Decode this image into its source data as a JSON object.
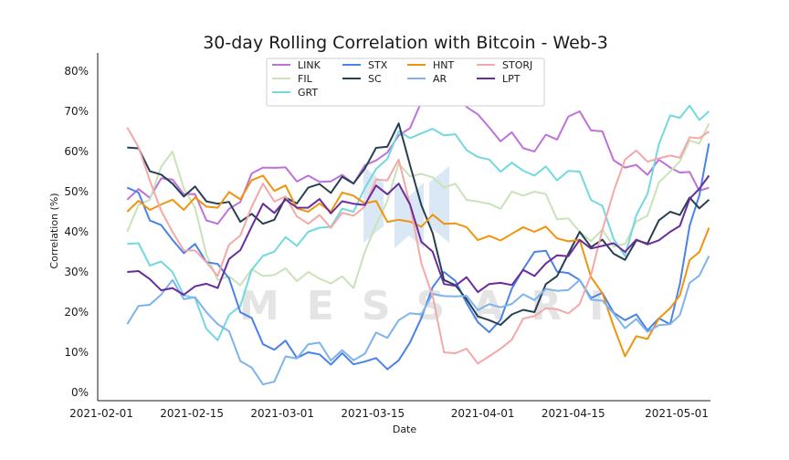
{
  "chart_data": {
    "type": "line",
    "title": "30-day Rolling Correlation with Bitcoin - Web-3",
    "xlabel": "Date",
    "ylabel": "Correlation (%)",
    "watermark": "MESSARI",
    "x_ticks": [
      "2021-02-01",
      "2021-02-15",
      "2021-03-01",
      "2021-03-15",
      "2021-04-01",
      "2021-04-15",
      "2021-05-01"
    ],
    "y_ticks": [
      "0%",
      "10%",
      "20%",
      "30%",
      "40%",
      "50%",
      "60%",
      "70%",
      "80%"
    ],
    "ylim": [
      0,
      80
    ],
    "x_range": [
      "2021-02-05",
      "2021-05-06"
    ],
    "legend_position": "top-center",
    "x": [
      "2021-02-05",
      "2021-02-12",
      "2021-02-19",
      "2021-02-26",
      "2021-03-05",
      "2021-03-12",
      "2021-03-19",
      "2021-03-26",
      "2021-04-02",
      "2021-04-09",
      "2021-04-16",
      "2021-04-23",
      "2021-04-30",
      "2021-05-06"
    ],
    "series": [
      {
        "name": "LINK",
        "color": "#c071d8",
        "values": [
          48,
          53,
          42,
          56,
          54,
          52,
          64,
          79,
          66,
          60,
          70,
          56,
          56,
          51
        ]
      },
      {
        "name": "FIL",
        "color": "#c9e2b8",
        "values": [
          40,
          60,
          28,
          29,
          30,
          26,
          57,
          51,
          47,
          50,
          40,
          37,
          55,
          67
        ]
      },
      {
        "name": "GRT",
        "color": "#73d8e0",
        "values": [
          37,
          30,
          13,
          34,
          40,
          45,
          65,
          64,
          58,
          54,
          55,
          34,
          69,
          70
        ]
      },
      {
        "name": "STX",
        "color": "#4a82e8",
        "values": [
          51,
          38,
          32,
          12,
          10,
          7,
          8,
          30,
          15,
          35,
          28,
          18,
          17,
          62
        ]
      },
      {
        "name": "SC",
        "color": "#273f52",
        "values": [
          61,
          52,
          47,
          42,
          51,
          52,
          67,
          28,
          18,
          20,
          40,
          33,
          45,
          48
        ]
      },
      {
        "name": "HNT",
        "color": "#f0940d",
        "values": [
          45,
          48,
          46,
          54,
          45,
          49,
          43,
          42,
          39,
          40,
          38,
          9,
          21,
          41
        ]
      },
      {
        "name": "AR",
        "color": "#7eb3ec",
        "values": [
          17,
          28,
          17,
          2,
          12,
          8,
          18,
          24,
          22,
          23,
          28,
          16,
          17,
          34
        ]
      },
      {
        "name": "STORJ",
        "color": "#f4a8a8",
        "values": [
          66,
          40,
          29,
          52,
          42,
          44,
          58,
          10,
          9,
          19,
          22,
          58,
          59,
          65
        ]
      },
      {
        "name": "LPT",
        "color": "#6a2c9b",
        "values": [
          30,
          26,
          26,
          47,
          46,
          47,
          52,
          27,
          27,
          29,
          38,
          35,
          40,
          54
        ]
      }
    ]
  }
}
